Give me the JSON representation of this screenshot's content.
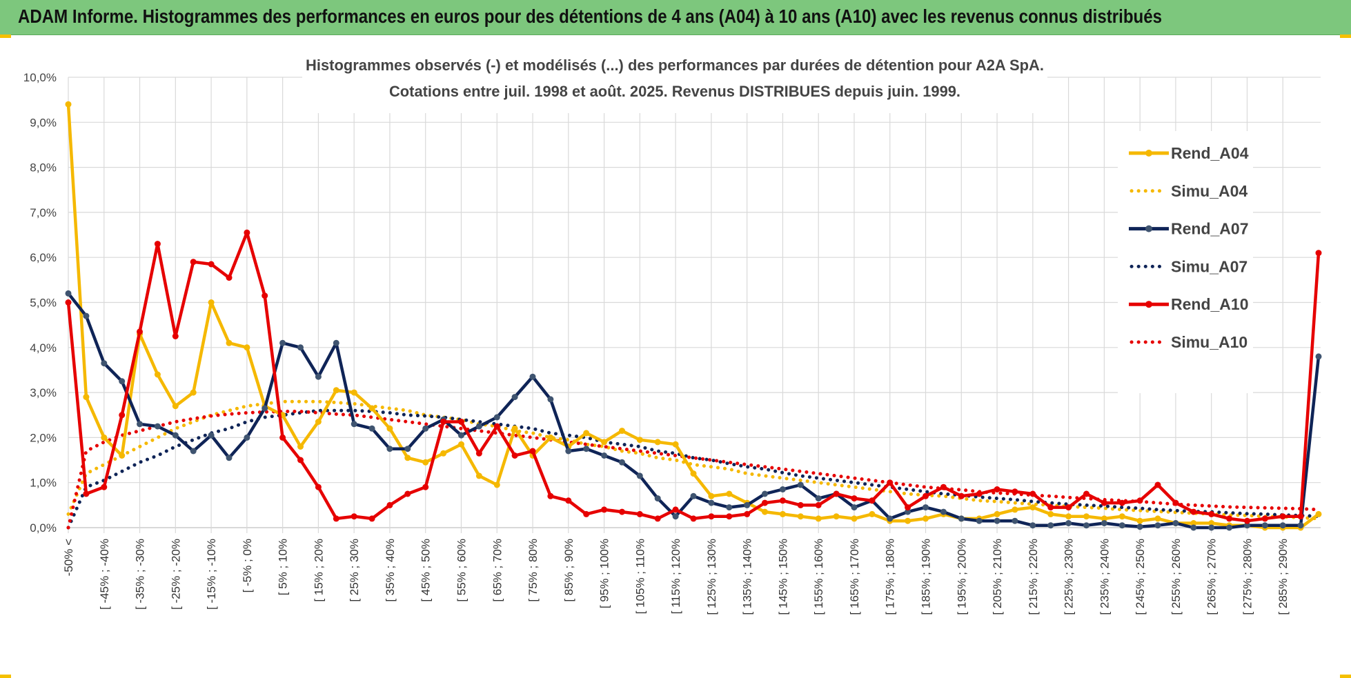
{
  "banner": {
    "title": "ADAM Informe. Histogrammes des performances en euros pour des détentions de 4 ans (A04) à 10 ans (A10) avec les revenus connus distribués",
    "color": "#7dc77d"
  },
  "chart_data": {
    "type": "line",
    "title": "Histogrammes observés (-) et modélisés (...) des performances par durées de détention pour A2A SpA.",
    "subtitle": "Cotations entre juil. 1998 et août. 2025. Revenus DISTRIBUES depuis juin. 1999.",
    "ylim": [
      0,
      10
    ],
    "y_ticks": [
      "0,0%",
      "1,0%",
      "2,0%",
      "3,0%",
      "4,0%",
      "5,0%",
      "6,0%",
      "7,0%",
      "8,0%",
      "9,0%",
      "10,0%"
    ],
    "x_tick_labels": [
      "-50% <",
      "[ -45% ; -40%",
      "[ -35% ; -30%",
      "[ -25% ; -20%",
      "[ -15% ; -10%",
      "[ -5% ; 0%",
      "[ 5% ; 10%",
      "[ 15% ; 20%",
      "[ 25% ; 30%",
      "[ 35% ; 40%",
      "[ 45% ; 50%",
      "[ 55% ; 60%",
      "[ 65% ; 70%",
      "[ 75% ; 80%",
      "[ 85% ; 90%",
      "[ 95% ; 100%",
      "[ 105% ; 110%",
      "[ 115% ; 120%",
      "[ 125% ; 130%",
      "[ 135% ; 140%",
      "[ 145% ; 150%",
      "[ 155% ; 160%",
      "[ 165% ; 170%",
      "[ 175% ; 180%",
      "[ 185% ; 190%",
      "[ 195% ; 200%",
      "[ 205% ; 210%",
      "[ 215% ; 220%",
      "[ 225% ; 230%",
      "[ 235% ; 240%",
      "[ 245% ; 250%",
      "[ 255% ; 260%",
      "[ 265% ; 270%",
      "[ 275% ; 280%",
      "[ 285% ; 290%"
    ],
    "grid": true,
    "legend_position": "right",
    "series": [
      {
        "name": "Rend_A04",
        "style": "solid",
        "color": "#f5b800",
        "values": [
          9.4,
          2.9,
          2.0,
          1.6,
          4.3,
          3.4,
          2.7,
          3.0,
          5.0,
          4.1,
          4.0,
          2.7,
          2.5,
          1.8,
          2.35,
          3.05,
          3.0,
          2.65,
          2.2,
          1.55,
          1.45,
          1.65,
          1.85,
          1.15,
          0.95,
          2.2,
          1.6,
          2.0,
          1.8,
          2.1,
          1.9,
          2.15,
          1.95,
          1.9,
          1.85,
          1.2,
          0.7,
          0.75,
          0.55,
          0.35,
          0.3,
          0.25,
          0.2,
          0.25,
          0.2,
          0.3,
          0.15,
          0.15,
          0.2,
          0.3,
          0.2,
          0.2,
          0.3,
          0.4,
          0.45,
          0.3,
          0.25,
          0.25,
          0.2,
          0.25,
          0.15,
          0.2,
          0.1,
          0.1,
          0.1,
          0.05,
          0.05,
          0.0,
          0.0,
          0.0,
          0.3
        ]
      },
      {
        "name": "Simu_A04",
        "style": "dotted",
        "color": "#f5b800",
        "values": [
          0.3,
          1.2,
          1.4,
          1.6,
          1.8,
          2.0,
          2.2,
          2.35,
          2.5,
          2.6,
          2.7,
          2.75,
          2.8,
          2.8,
          2.8,
          2.78,
          2.75,
          2.7,
          2.65,
          2.6,
          2.5,
          2.45,
          2.4,
          2.3,
          2.25,
          2.15,
          2.1,
          2.0,
          1.95,
          1.85,
          1.8,
          1.7,
          1.65,
          1.55,
          1.5,
          1.4,
          1.35,
          1.3,
          1.2,
          1.15,
          1.1,
          1.05,
          1.0,
          0.95,
          0.9,
          0.85,
          0.8,
          0.75,
          0.72,
          0.7,
          0.65,
          0.6,
          0.58,
          0.55,
          0.52,
          0.5,
          0.47,
          0.45,
          0.43,
          0.4,
          0.38,
          0.36,
          0.34,
          0.32,
          0.3,
          0.28,
          0.27,
          0.25,
          0.24,
          0.22,
          0.2
        ]
      },
      {
        "name": "Rend_A07",
        "style": "solid",
        "color": "#0f2457",
        "values": [
          5.2,
          4.7,
          3.65,
          3.25,
          2.3,
          2.25,
          2.05,
          1.7,
          2.05,
          1.55,
          2.0,
          2.65,
          4.1,
          4.0,
          3.35,
          4.1,
          2.3,
          2.2,
          1.75,
          1.75,
          2.2,
          2.4,
          2.05,
          2.25,
          2.45,
          2.9,
          3.35,
          2.85,
          1.7,
          1.75,
          1.6,
          1.45,
          1.15,
          0.65,
          0.25,
          0.7,
          0.55,
          0.45,
          0.5,
          0.75,
          0.85,
          0.95,
          0.65,
          0.75,
          0.45,
          0.6,
          0.2,
          0.35,
          0.45,
          0.35,
          0.2,
          0.15,
          0.15,
          0.15,
          0.05,
          0.05,
          0.1,
          0.05,
          0.1,
          0.05,
          0.02,
          0.05,
          0.1,
          0.0,
          0.0,
          0.0,
          0.05,
          0.05,
          0.05,
          0.05,
          3.8
        ]
      },
      {
        "name": "Simu_A07",
        "style": "dotted",
        "color": "#0f2457",
        "values": [
          0.0,
          0.9,
          1.05,
          1.25,
          1.45,
          1.6,
          1.8,
          1.95,
          2.1,
          2.2,
          2.35,
          2.45,
          2.5,
          2.55,
          2.6,
          2.6,
          2.6,
          2.58,
          2.55,
          2.5,
          2.48,
          2.45,
          2.4,
          2.35,
          2.3,
          2.25,
          2.2,
          2.1,
          2.05,
          2.0,
          1.9,
          1.85,
          1.8,
          1.7,
          1.65,
          1.55,
          1.5,
          1.42,
          1.35,
          1.3,
          1.22,
          1.15,
          1.1,
          1.05,
          1.0,
          0.95,
          0.9,
          0.85,
          0.8,
          0.75,
          0.72,
          0.68,
          0.65,
          0.62,
          0.58,
          0.55,
          0.52,
          0.5,
          0.48,
          0.45,
          0.43,
          0.4,
          0.38,
          0.36,
          0.35,
          0.33,
          0.31,
          0.3,
          0.28,
          0.27,
          0.25
        ]
      },
      {
        "name": "Rend_A10",
        "style": "solid",
        "color": "#e60000",
        "values": [
          5.0,
          0.75,
          0.9,
          2.5,
          4.35,
          6.3,
          4.25,
          5.9,
          5.85,
          5.55,
          6.55,
          5.15,
          2.0,
          1.5,
          0.9,
          0.2,
          0.25,
          0.2,
          0.5,
          0.75,
          0.9,
          2.35,
          2.35,
          1.65,
          2.25,
          1.6,
          1.7,
          0.7,
          0.6,
          0.3,
          0.4,
          0.35,
          0.3,
          0.2,
          0.4,
          0.2,
          0.25,
          0.25,
          0.3,
          0.55,
          0.6,
          0.5,
          0.5,
          0.75,
          0.65,
          0.6,
          1.0,
          0.45,
          0.7,
          0.9,
          0.7,
          0.75,
          0.85,
          0.8,
          0.75,
          0.45,
          0.45,
          0.75,
          0.55,
          0.55,
          0.6,
          0.95,
          0.55,
          0.35,
          0.3,
          0.2,
          0.15,
          0.2,
          0.25,
          0.25,
          6.1
        ]
      },
      {
        "name": "Simu_A10",
        "style": "dotted",
        "color": "#e60000",
        "values": [
          0.0,
          1.7,
          1.9,
          2.05,
          2.15,
          2.25,
          2.35,
          2.42,
          2.48,
          2.52,
          2.55,
          2.57,
          2.58,
          2.58,
          2.55,
          2.52,
          2.5,
          2.45,
          2.4,
          2.35,
          2.3,
          2.25,
          2.2,
          2.15,
          2.1,
          2.05,
          2.0,
          1.95,
          1.9,
          1.85,
          1.8,
          1.75,
          1.7,
          1.65,
          1.6,
          1.55,
          1.5,
          1.45,
          1.4,
          1.35,
          1.3,
          1.25,
          1.2,
          1.15,
          1.1,
          1.05,
          1.0,
          0.95,
          0.9,
          0.87,
          0.84,
          0.8,
          0.77,
          0.75,
          0.72,
          0.7,
          0.67,
          0.65,
          0.62,
          0.6,
          0.58,
          0.55,
          0.52,
          0.5,
          0.48,
          0.46,
          0.45,
          0.44,
          0.43,
          0.42,
          0.4
        ]
      }
    ]
  }
}
